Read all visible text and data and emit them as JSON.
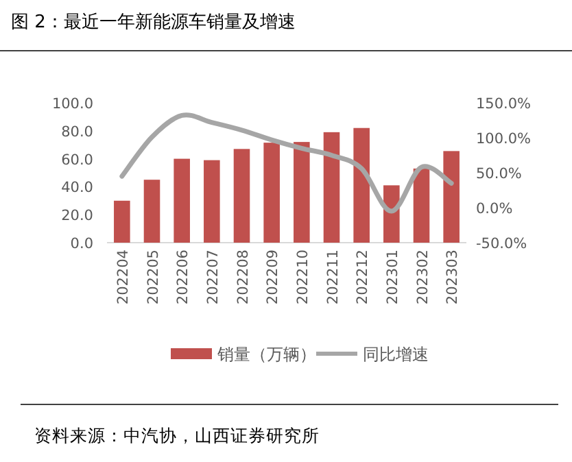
{
  "chart_data": {
    "type": "bar",
    "title": "图 2：最近一年新能源车销量及增速",
    "categories": [
      "202204",
      "202205",
      "202206",
      "202207",
      "202208",
      "202209",
      "202210",
      "202211",
      "202212",
      "202301",
      "202302",
      "202303"
    ],
    "series": [
      {
        "name": "销量（万辆）",
        "color": "#c0504d",
        "values": [
          30,
          45,
          60,
          59,
          67,
          71.5,
          72,
          79,
          82,
          41,
          53,
          65.5
        ]
      },
      {
        "name": "同比增速",
        "type": "line",
        "axis": "y2",
        "color": "#a6a6a6",
        "values": [
          45,
          101,
          132,
          122,
          111,
          97,
          85,
          75,
          56,
          -5,
          58,
          35
        ]
      }
    ],
    "ylim": [
      0,
      100
    ],
    "yticks": [
      {
        "value": 0,
        "label": "0.0"
      },
      {
        "value": 20,
        "label": "20.0"
      },
      {
        "value": 40,
        "label": "40.0"
      },
      {
        "value": 60,
        "label": "60.0"
      },
      {
        "value": 80,
        "label": "80.0"
      },
      {
        "value": 100,
        "label": "100.0"
      }
    ],
    "y2lim": [
      -50,
      150
    ],
    "y2ticks": [
      {
        "value": -50,
        "label": "-50.0%"
      },
      {
        "value": 0,
        "label": "0.0%"
      },
      {
        "value": 50,
        "label": "50.0%"
      },
      {
        "value": 100,
        "label": "100.0%"
      },
      {
        "value": 150,
        "label": "150.0%"
      }
    ],
    "legend": "bottom",
    "annotations": [
      "资料来源：中汽协，山西证券研究所"
    ]
  }
}
